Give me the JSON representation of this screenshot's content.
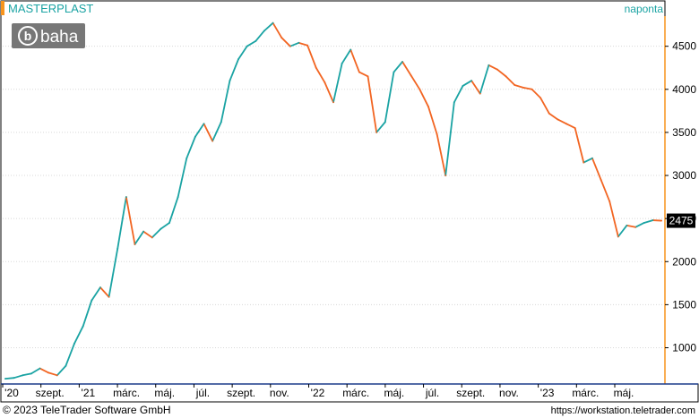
{
  "header": {
    "instrument": "MASTERPLAST",
    "interval": "naponta",
    "logo_text": "baha"
  },
  "footer": {
    "copyright": "© 2023 TeleTrader Software GmbH",
    "url": "https://workstation.teletrader.com"
  },
  "colors": {
    "up": "#1aa3a3",
    "down": "#f26522",
    "accent": "#f7941d",
    "title": "#1aa3a3",
    "grid": "#d8d8d8",
    "frame": "#000000",
    "logo_bg": "#777777"
  },
  "chart_data": {
    "type": "line",
    "title": "MASTERPLAST",
    "subtitle": "naponta",
    "xlabel": "",
    "ylabel": "",
    "ylim": [
      600,
      4850
    ],
    "y_ticks": [
      1000,
      1500,
      2000,
      2500,
      3000,
      3500,
      4000,
      4500
    ],
    "x_ticks": [
      "'20",
      "szept.",
      "'21",
      "márc.",
      "máj.",
      "júl.",
      "szept.",
      "nov.",
      "'22",
      "márc.",
      "máj.",
      "júl.",
      "szept.",
      "nov.",
      "'23",
      "márc.",
      "máj."
    ],
    "grid": true,
    "last_value": 2475,
    "series": [
      {
        "values": [
          640,
          650,
          680,
          700,
          760,
          710,
          680,
          790,
          1050,
          1250,
          1550,
          1700,
          1590,
          2150,
          2750,
          2200,
          2350,
          2280,
          2380,
          2450,
          2750,
          3200,
          3450,
          3600,
          3400,
          3620,
          4100,
          4350,
          4500,
          4560,
          4680,
          4770,
          4600,
          4500,
          4540,
          4510,
          4250,
          4080,
          3850,
          4300,
          4460,
          4200,
          4150,
          3500,
          3620,
          4200,
          4320,
          4160,
          4000,
          3800,
          3480,
          3000,
          3850,
          4040,
          4100,
          3950,
          4280,
          4230,
          4150,
          4050,
          4020,
          4000,
          3900,
          3720,
          3650,
          3600,
          3550,
          3150,
          3200,
          2950,
          2700,
          2290,
          2420,
          2400,
          2450,
          2480,
          2475
        ]
      }
    ]
  }
}
